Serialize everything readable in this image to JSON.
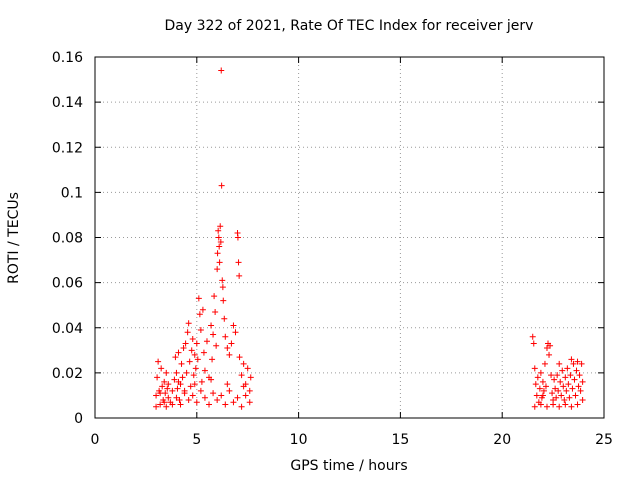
{
  "chart_data": {
    "type": "scatter",
    "title": "Day 322 of 2021, Rate Of TEC Index for receiver jerv",
    "xlabel": "GPS time / hours",
    "ylabel": "ROTI / TECUs",
    "xlim": [
      0,
      25
    ],
    "ylim": [
      0,
      0.16
    ],
    "xticks": [
      "0",
      "5",
      "10",
      "15",
      "20",
      "25"
    ],
    "yticks": [
      "0",
      "0.02",
      "0.04",
      "0.06",
      "0.08",
      "0.1",
      "0.12",
      "0.14",
      "0.16"
    ],
    "grid": true,
    "marker": "+",
    "color": "#ff0000",
    "series": [
      {
        "name": "ROTI",
        "points": [
          [
            3.0,
            0.01
          ],
          [
            3.05,
            0.018
          ],
          [
            3.1,
            0.025
          ],
          [
            3.15,
            0.012
          ],
          [
            3.2,
            0.006
          ],
          [
            3.25,
            0.022
          ],
          [
            3.3,
            0.014
          ],
          [
            3.35,
            0.008
          ],
          [
            3.4,
            0.016
          ],
          [
            3.45,
            0.011
          ],
          [
            3.5,
            0.005
          ],
          [
            3.55,
            0.013
          ],
          [
            3.6,
            0.009
          ],
          [
            3.7,
            0.007
          ],
          [
            3.8,
            0.012
          ],
          [
            3.9,
            0.017
          ],
          [
            3.95,
            0.027
          ],
          [
            4.0,
            0.02
          ],
          [
            4.05,
            0.013
          ],
          [
            4.1,
            0.029
          ],
          [
            4.15,
            0.008
          ],
          [
            4.2,
            0.015
          ],
          [
            4.25,
            0.024
          ],
          [
            4.3,
            0.018
          ],
          [
            4.35,
            0.031
          ],
          [
            4.4,
            0.011
          ],
          [
            4.45,
            0.033
          ],
          [
            4.5,
            0.02
          ],
          [
            4.55,
            0.038
          ],
          [
            4.6,
            0.042
          ],
          [
            4.65,
            0.025
          ],
          [
            4.7,
            0.014
          ],
          [
            4.75,
            0.03
          ],
          [
            4.8,
            0.035
          ],
          [
            4.85,
            0.019
          ],
          [
            4.9,
            0.028
          ],
          [
            4.95,
            0.022
          ],
          [
            5.0,
            0.033
          ],
          [
            5.05,
            0.026
          ],
          [
            5.1,
            0.053
          ],
          [
            5.15,
            0.046
          ],
          [
            5.2,
            0.039
          ],
          [
            5.25,
            0.016
          ],
          [
            5.3,
            0.048
          ],
          [
            5.35,
            0.029
          ],
          [
            5.4,
            0.021
          ],
          [
            5.5,
            0.034
          ],
          [
            5.6,
            0.018
          ],
          [
            5.7,
            0.041
          ],
          [
            5.75,
            0.026
          ],
          [
            5.8,
            0.037
          ],
          [
            5.85,
            0.054
          ],
          [
            5.9,
            0.047
          ],
          [
            5.95,
            0.032
          ],
          [
            6.0,
            0.066
          ],
          [
            6.02,
            0.073
          ],
          [
            6.05,
            0.083
          ],
          [
            6.08,
            0.08
          ],
          [
            6.1,
            0.076
          ],
          [
            6.12,
            0.069
          ],
          [
            6.15,
            0.085
          ],
          [
            6.18,
            0.078
          ],
          [
            6.2,
            0.154
          ],
          [
            6.22,
            0.103
          ],
          [
            6.25,
            0.061
          ],
          [
            6.28,
            0.058
          ],
          [
            6.3,
            0.052
          ],
          [
            6.35,
            0.044
          ],
          [
            6.4,
            0.036
          ],
          [
            6.5,
            0.031
          ],
          [
            6.6,
            0.028
          ],
          [
            6.7,
            0.033
          ],
          [
            6.8,
            0.041
          ],
          [
            6.9,
            0.038
          ],
          [
            7.0,
            0.082
          ],
          [
            7.02,
            0.08
          ],
          [
            7.05,
            0.069
          ],
          [
            7.08,
            0.063
          ],
          [
            7.1,
            0.027
          ],
          [
            7.2,
            0.019
          ],
          [
            7.3,
            0.024
          ],
          [
            7.4,
            0.015
          ],
          [
            7.5,
            0.022
          ],
          [
            7.6,
            0.012
          ],
          [
            7.65,
            0.018
          ],
          [
            3.0,
            0.005
          ],
          [
            3.2,
            0.011
          ],
          [
            3.4,
            0.007
          ],
          [
            3.6,
            0.015
          ],
          [
            3.8,
            0.006
          ],
          [
            4.0,
            0.009
          ],
          [
            4.2,
            0.006
          ],
          [
            4.4,
            0.012
          ],
          [
            4.6,
            0.008
          ],
          [
            4.8,
            0.01
          ],
          [
            5.0,
            0.007
          ],
          [
            5.2,
            0.012
          ],
          [
            5.4,
            0.009
          ],
          [
            5.6,
            0.006
          ],
          [
            5.8,
            0.011
          ],
          [
            6.0,
            0.008
          ],
          [
            6.2,
            0.01
          ],
          [
            6.4,
            0.006
          ],
          [
            6.6,
            0.012
          ],
          [
            6.8,
            0.007
          ],
          [
            7.0,
            0.009
          ],
          [
            7.2,
            0.005
          ],
          [
            7.4,
            0.01
          ],
          [
            7.6,
            0.007
          ],
          [
            4.1,
            0.016
          ],
          [
            4.9,
            0.015
          ],
          [
            5.7,
            0.017
          ],
          [
            6.5,
            0.015
          ],
          [
            7.3,
            0.014
          ],
          [
            3.5,
            0.02
          ],
          [
            21.5,
            0.036
          ],
          [
            21.55,
            0.033
          ],
          [
            21.6,
            0.022
          ],
          [
            21.65,
            0.015
          ],
          [
            21.7,
            0.01
          ],
          [
            21.75,
            0.018
          ],
          [
            21.8,
            0.007
          ],
          [
            21.85,
            0.013
          ],
          [
            21.9,
            0.02
          ],
          [
            21.95,
            0.009
          ],
          [
            22.0,
            0.016
          ],
          [
            22.05,
            0.012
          ],
          [
            22.1,
            0.024
          ],
          [
            22.15,
            0.014
          ],
          [
            22.2,
            0.031
          ],
          [
            22.25,
            0.033
          ],
          [
            22.3,
            0.028
          ],
          [
            22.35,
            0.032
          ],
          [
            22.4,
            0.019
          ],
          [
            22.45,
            0.011
          ],
          [
            22.5,
            0.008
          ],
          [
            22.55,
            0.017
          ],
          [
            22.6,
            0.013
          ],
          [
            22.65,
            0.009
          ],
          [
            22.7,
            0.019
          ],
          [
            22.75,
            0.012
          ],
          [
            22.8,
            0.024
          ],
          [
            22.85,
            0.016
          ],
          [
            22.9,
            0.01
          ],
          [
            22.95,
            0.021
          ],
          [
            23.0,
            0.014
          ],
          [
            23.05,
            0.008
          ],
          [
            23.1,
            0.018
          ],
          [
            23.15,
            0.012
          ],
          [
            23.2,
            0.022
          ],
          [
            23.25,
            0.015
          ],
          [
            23.3,
            0.009
          ],
          [
            23.35,
            0.019
          ],
          [
            23.4,
            0.026
          ],
          [
            23.45,
            0.013
          ],
          [
            23.5,
            0.024
          ],
          [
            23.55,
            0.017
          ],
          [
            23.6,
            0.01
          ],
          [
            23.65,
            0.021
          ],
          [
            23.7,
            0.025
          ],
          [
            23.75,
            0.014
          ],
          [
            23.8,
            0.019
          ],
          [
            23.85,
            0.012
          ],
          [
            23.9,
            0.024
          ],
          [
            23.95,
            0.016
          ],
          [
            21.6,
            0.005
          ],
          [
            21.9,
            0.006
          ],
          [
            22.2,
            0.005
          ],
          [
            22.5,
            0.006
          ],
          [
            22.8,
            0.005
          ],
          [
            23.1,
            0.006
          ],
          [
            23.4,
            0.005
          ],
          [
            23.7,
            0.006
          ],
          [
            23.95,
            0.008
          ],
          [
            22.0,
            0.01
          ]
        ]
      }
    ]
  }
}
